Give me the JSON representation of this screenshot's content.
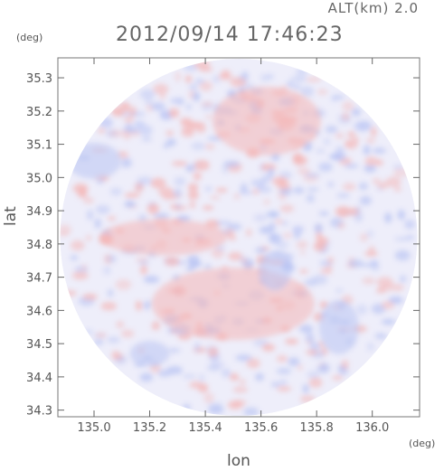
{
  "header": {
    "altitude_label": "ALT(km) 2.0",
    "timestamp": "2012/09/14 17:46:23"
  },
  "chart_data": {
    "type": "heatmap",
    "title": "2012/09/14 17:46:23",
    "subtitle": "ALT(km) 2.0",
    "xlabel": "lon",
    "ylabel": "lat",
    "x_unit": "(deg)",
    "y_unit": "(deg)",
    "xlim": [
      134.87,
      136.17
    ],
    "ylim": [
      34.28,
      35.36
    ],
    "x_ticks": [
      "135.0",
      "135.2",
      "135.4",
      "135.6",
      "135.8",
      "136.0"
    ],
    "y_ticks": [
      "34.3",
      "34.4",
      "34.5",
      "34.6",
      "34.7",
      "34.8",
      "34.9",
      "35.0",
      "35.1",
      "35.2",
      "35.3"
    ],
    "radar_center": [
      135.52,
      34.82
    ],
    "colors": {
      "positive": "#f4b7b7",
      "negative": "#b9c4f3",
      "neutral": "#eeeefa",
      "axis": "#666666"
    },
    "grid": false,
    "legend": "none"
  }
}
